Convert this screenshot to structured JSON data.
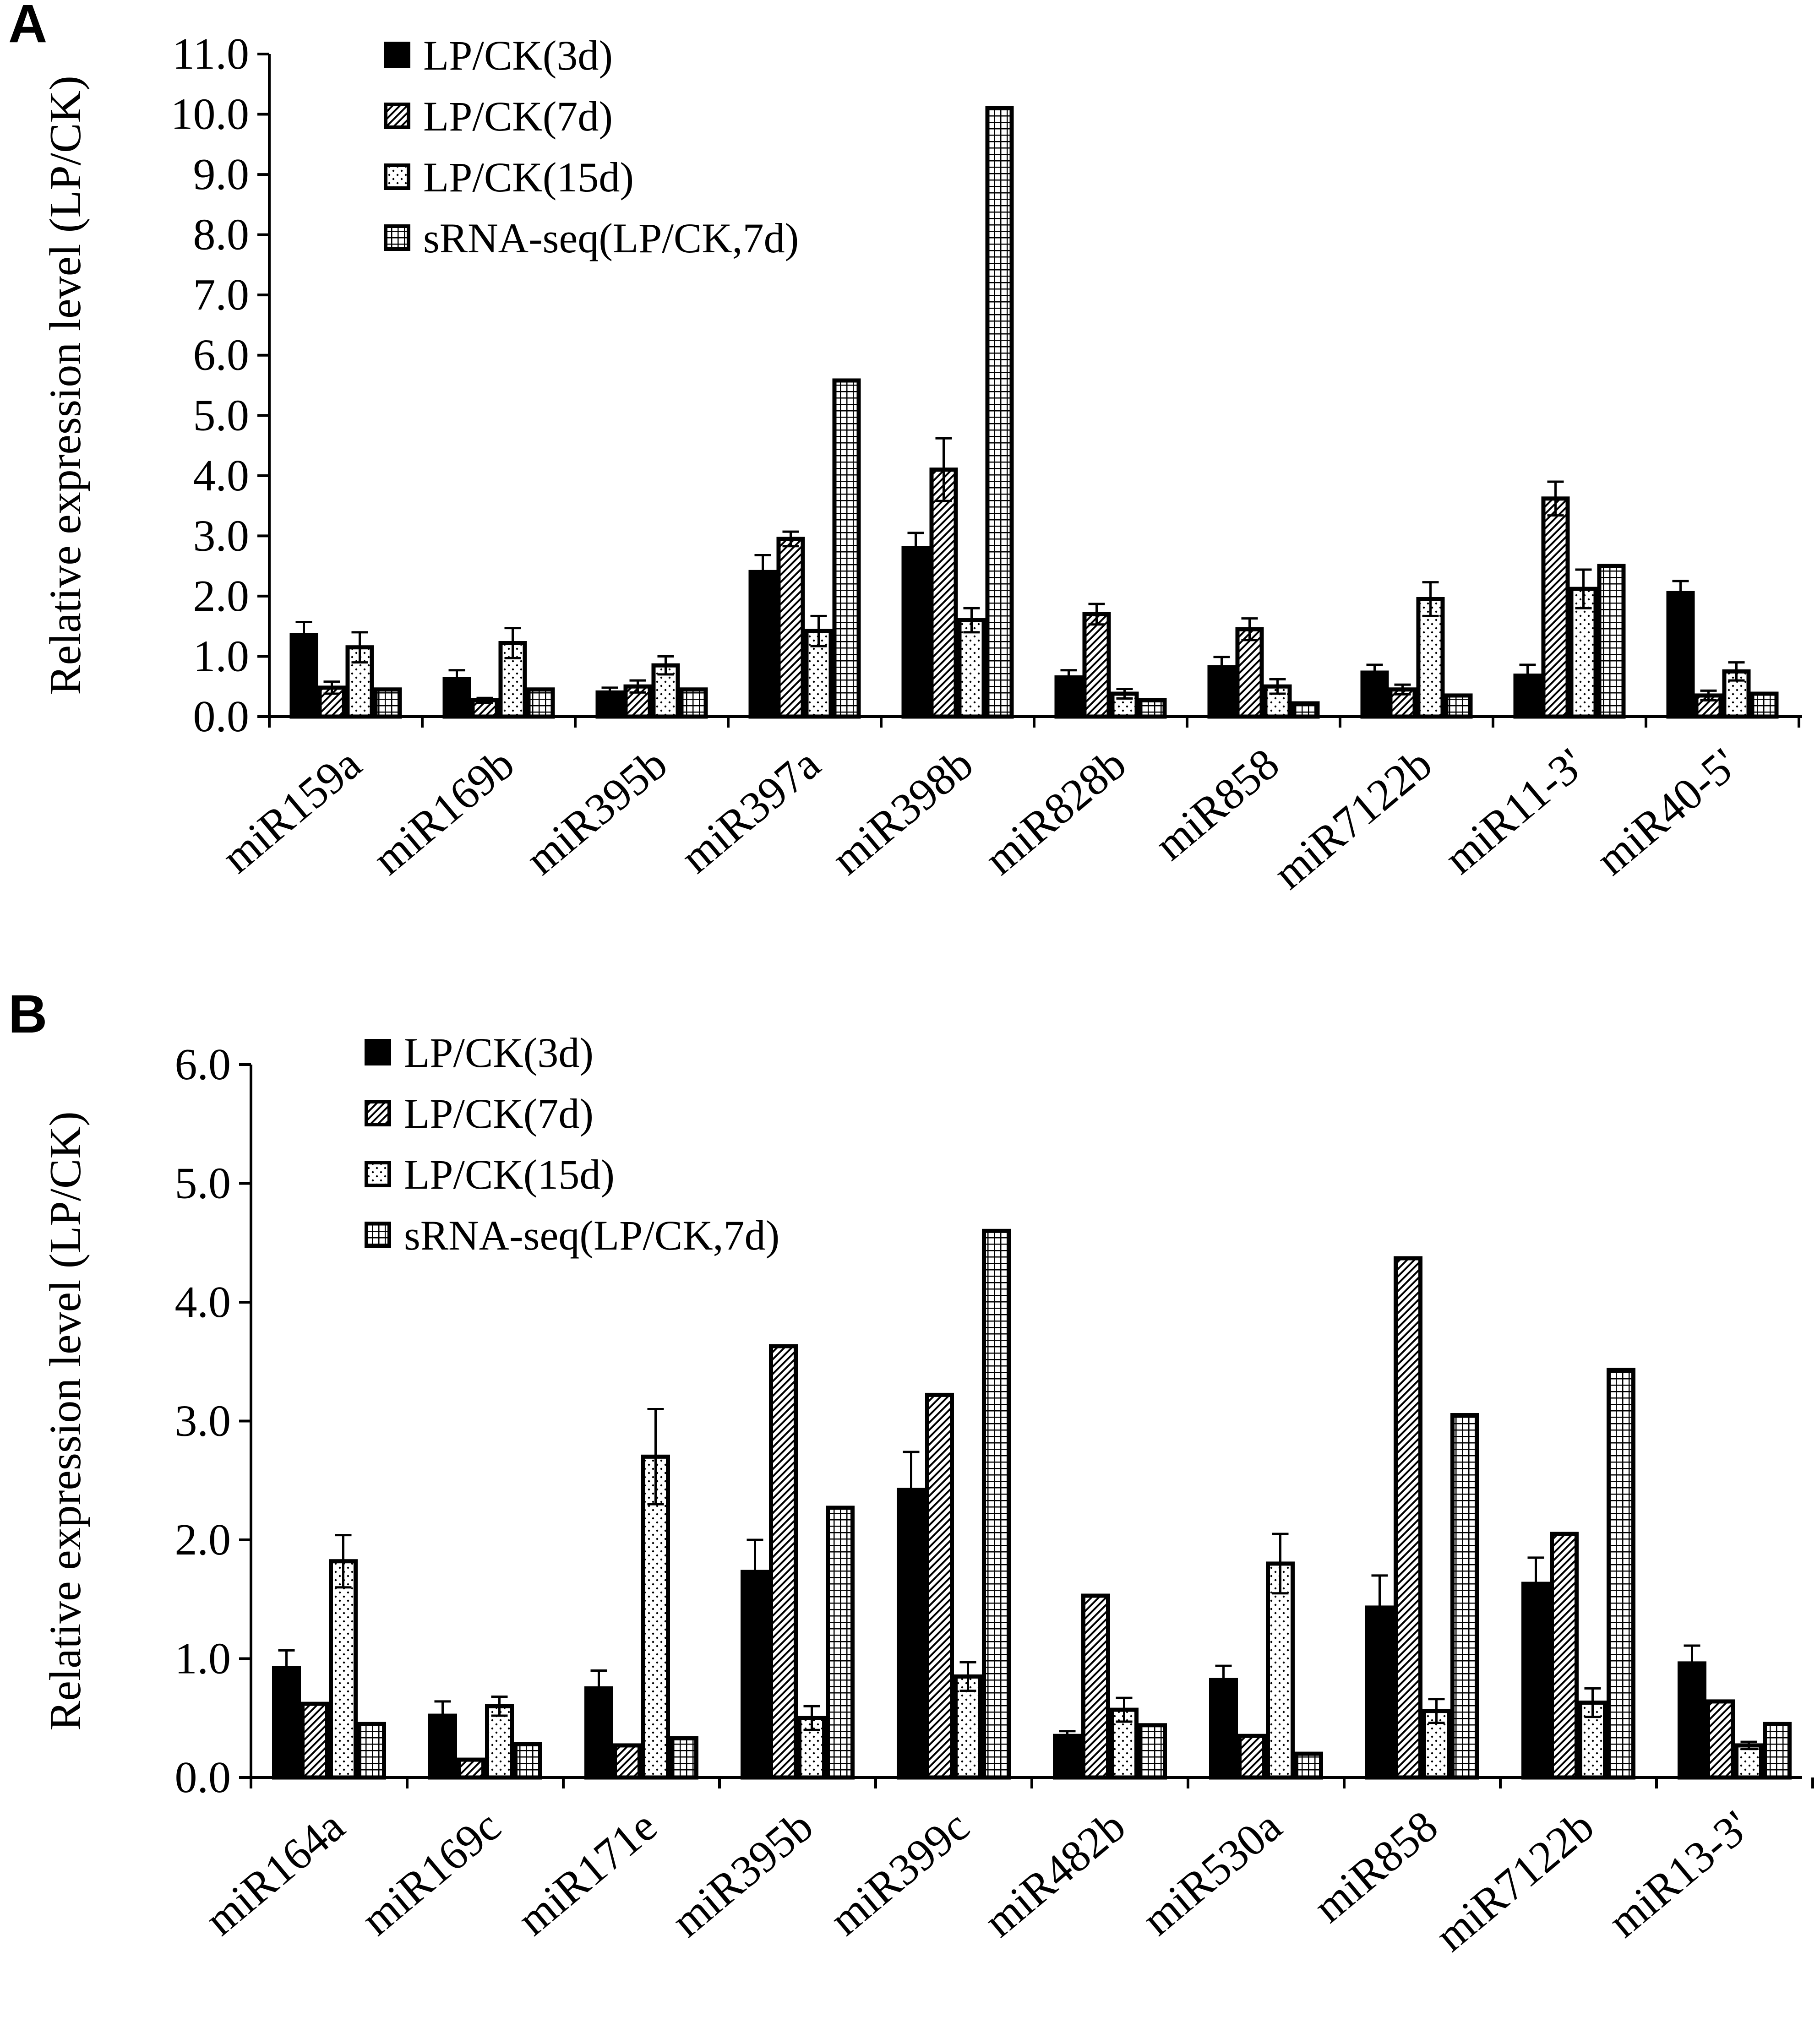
{
  "figure": {
    "panels": [
      "A",
      "B"
    ]
  },
  "colors": {
    "black": "#000000",
    "white": "#ffffff"
  },
  "chart_data": [
    {
      "panel": "A",
      "type": "bar",
      "ylabel": "Relative expression level (LP/CK)",
      "xlabel": "",
      "ylim": [
        0,
        11
      ],
      "yticks": [
        "0.0",
        "1.0",
        "2.0",
        "3.0",
        "4.0",
        "5.0",
        "6.0",
        "7.0",
        "8.0",
        "9.0",
        "10.0",
        "11.0"
      ],
      "categories": [
        "miR159a",
        "miR169b",
        "miR395b",
        "miR397a",
        "miR398b",
        "miR828b",
        "miR858",
        "miR7122b",
        "miR11-3'",
        "miR40-5'"
      ],
      "series": [
        {
          "name": "LP/CK(3d)",
          "pattern": "solid",
          "values": [
            1.35,
            0.62,
            0.4,
            2.4,
            2.8,
            0.65,
            0.82,
            0.73,
            0.68,
            2.05
          ],
          "errors": [
            0.22,
            0.15,
            0.08,
            0.28,
            0.25,
            0.12,
            0.17,
            0.13,
            0.18,
            0.2
          ]
        },
        {
          "name": "LP/CK(7d)",
          "pattern": "diagonal",
          "values": [
            0.48,
            0.27,
            0.5,
            2.95,
            4.1,
            1.7,
            1.45,
            0.45,
            3.62,
            0.35
          ],
          "errors": [
            0.1,
            0.04,
            0.1,
            0.12,
            0.52,
            0.17,
            0.18,
            0.08,
            0.28,
            0.08
          ]
        },
        {
          "name": "LP/CK(15d)",
          "pattern": "dotted",
          "values": [
            1.15,
            1.22,
            0.85,
            1.42,
            1.6,
            0.38,
            0.5,
            1.95,
            2.12,
            0.75
          ],
          "errors": [
            0.25,
            0.25,
            0.15,
            0.25,
            0.2,
            0.08,
            0.12,
            0.28,
            0.32,
            0.15
          ]
        },
        {
          "name": "sRNA-seq(LP/CK,7d)",
          "pattern": "grid",
          "values": [
            0.45,
            0.45,
            0.45,
            5.58,
            10.1,
            0.27,
            0.22,
            0.35,
            2.5,
            0.38
          ],
          "errors": [
            0,
            0,
            0,
            0,
            0,
            0,
            0,
            0,
            0,
            0
          ]
        }
      ],
      "legend": [
        "LP/CK(3d)",
        "LP/CK(7d)",
        "LP/CK(15d)",
        "sRNA-seq(LP/CK,7d)"
      ],
      "legend_position": "top-left"
    },
    {
      "panel": "B",
      "type": "bar",
      "ylabel": "Relative expression level (LP/CK)",
      "xlabel": "",
      "ylim": [
        0,
        6
      ],
      "yticks": [
        "0.0",
        "1.0",
        "2.0",
        "3.0",
        "4.0",
        "5.0",
        "6.0"
      ],
      "categories": [
        "miR164a",
        "miR169c",
        "miR171e",
        "miR395b",
        "miR399c",
        "miR482b",
        "miR530a",
        "miR858",
        "miR7122b",
        "miR13-3'"
      ],
      "series": [
        {
          "name": "LP/CK(3d)",
          "pattern": "solid",
          "values": [
            0.92,
            0.52,
            0.75,
            1.73,
            2.42,
            0.35,
            0.82,
            1.43,
            1.63,
            0.96
          ],
          "errors": [
            0.15,
            0.12,
            0.15,
            0.27,
            0.32,
            0.04,
            0.12,
            0.27,
            0.22,
            0.15
          ]
        },
        {
          "name": "LP/CK(7d)",
          "pattern": "diagonal",
          "values": [
            0.62,
            0.15,
            0.27,
            3.63,
            3.22,
            1.53,
            0.35,
            4.37,
            2.05,
            0.64
          ]
        },
        {
          "name": "LP/CK(15d)",
          "pattern": "dotted",
          "values": [
            1.82,
            0.6,
            2.7,
            0.5,
            0.85,
            0.57,
            1.8,
            0.56,
            0.63,
            0.27
          ],
          "errors": [
            0.22,
            0.08,
            0.4,
            0.1,
            0.12,
            0.1,
            0.25,
            0.1,
            0.12,
            0.03
          ]
        },
        {
          "name": "sRNA-seq(LP/CK,7d)",
          "pattern": "grid",
          "values": [
            0.45,
            0.28,
            0.33,
            2.27,
            4.6,
            0.44,
            0.2,
            3.05,
            3.43,
            0.45
          ],
          "errors": [
            0,
            0,
            0,
            0,
            0,
            0,
            0,
            0,
            0,
            0
          ]
        }
      ],
      "legend": [
        "LP/CK(3d)",
        "LP/CK(7d)",
        "LP/CK(15d)",
        "sRNA-seq(LP/CK,7d)"
      ],
      "legend_position": "top-left"
    }
  ]
}
